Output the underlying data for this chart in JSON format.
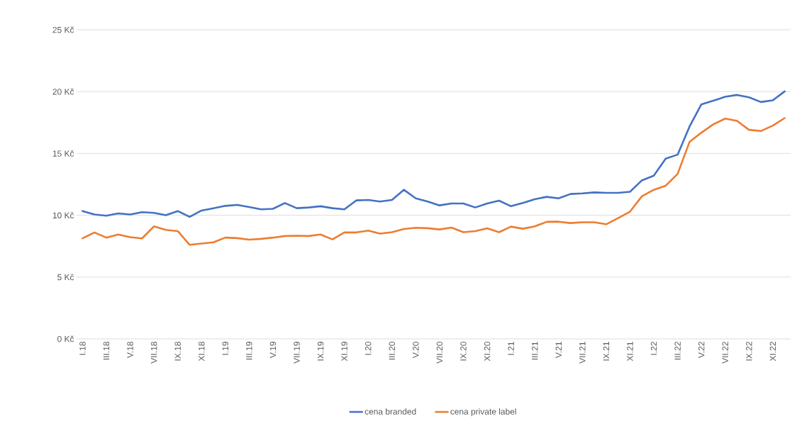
{
  "chart_data": {
    "type": "line",
    "categories": [
      "I.18",
      null,
      "III.18",
      null,
      "V.18",
      null,
      "VII.18",
      null,
      "IX.18",
      null,
      "XI.18",
      null,
      "I.19",
      null,
      "III.19",
      null,
      "V.19",
      null,
      "VII.19",
      null,
      "IX.19",
      null,
      "XI.19",
      null,
      "I.20",
      null,
      "III.20",
      null,
      "V.20",
      null,
      "VII.20",
      null,
      "IX.20",
      null,
      "XI.20",
      null,
      "I.21",
      null,
      "III.21",
      null,
      "V.21",
      null,
      "VII.21",
      null,
      "IX.21",
      null,
      "XI.21",
      null,
      "I.22",
      null,
      "III.22",
      null,
      "V.22",
      null,
      "VII.22",
      null,
      "IX.22",
      null,
      "XI.22",
      null
    ],
    "series": [
      {
        "name": "cena branded",
        "color": "#4472c4",
        "values": [
          10.34,
          10.06,
          9.96,
          10.15,
          10.06,
          10.25,
          10.19,
          10.0,
          10.34,
          9.87,
          10.38,
          10.57,
          10.76,
          10.84,
          10.67,
          10.48,
          10.52,
          10.99,
          10.57,
          10.63,
          10.73,
          10.57,
          10.48,
          11.2,
          11.24,
          11.11,
          11.24,
          12.06,
          11.37,
          11.11,
          10.8,
          10.95,
          10.95,
          10.63,
          10.95,
          11.18,
          10.73,
          10.99,
          11.3,
          11.49,
          11.37,
          11.72,
          11.77,
          11.85,
          11.81,
          11.81,
          11.9,
          12.82,
          13.2,
          14.58,
          14.9,
          17.16,
          18.97,
          19.26,
          19.58,
          19.73,
          19.54,
          19.16,
          19.29,
          20.02
        ]
      },
      {
        "name": "cena private label",
        "color": "#ed7d31",
        "values": [
          8.13,
          8.61,
          8.19,
          8.44,
          8.23,
          8.13,
          9.1,
          8.82,
          8.72,
          7.61,
          7.71,
          7.81,
          8.19,
          8.15,
          8.03,
          8.09,
          8.19,
          8.32,
          8.34,
          8.32,
          8.44,
          8.05,
          8.61,
          8.61,
          8.76,
          8.51,
          8.63,
          8.89,
          8.99,
          8.95,
          8.85,
          9.0,
          8.63,
          8.72,
          8.95,
          8.63,
          9.08,
          8.91,
          9.1,
          9.47,
          9.48,
          9.37,
          9.43,
          9.43,
          9.27,
          9.77,
          10.29,
          11.53,
          12.06,
          12.39,
          13.34,
          15.92,
          16.68,
          17.35,
          17.82,
          17.63,
          16.91,
          16.81,
          17.25,
          17.86
        ]
      }
    ],
    "ylim": [
      0,
      25
    ],
    "yticks": [
      {
        "value": 0,
        "label": "0 Kč"
      },
      {
        "value": 5,
        "label": "5 Kč"
      },
      {
        "value": 10,
        "label": "10 Kč"
      },
      {
        "value": 15,
        "label": "15 Kč"
      },
      {
        "value": 20,
        "label": "20 Kč"
      },
      {
        "value": 25,
        "label": "25 Kč"
      }
    ],
    "grid": "y",
    "legend": "bottom",
    "marker": "none",
    "line_style": "solid"
  }
}
